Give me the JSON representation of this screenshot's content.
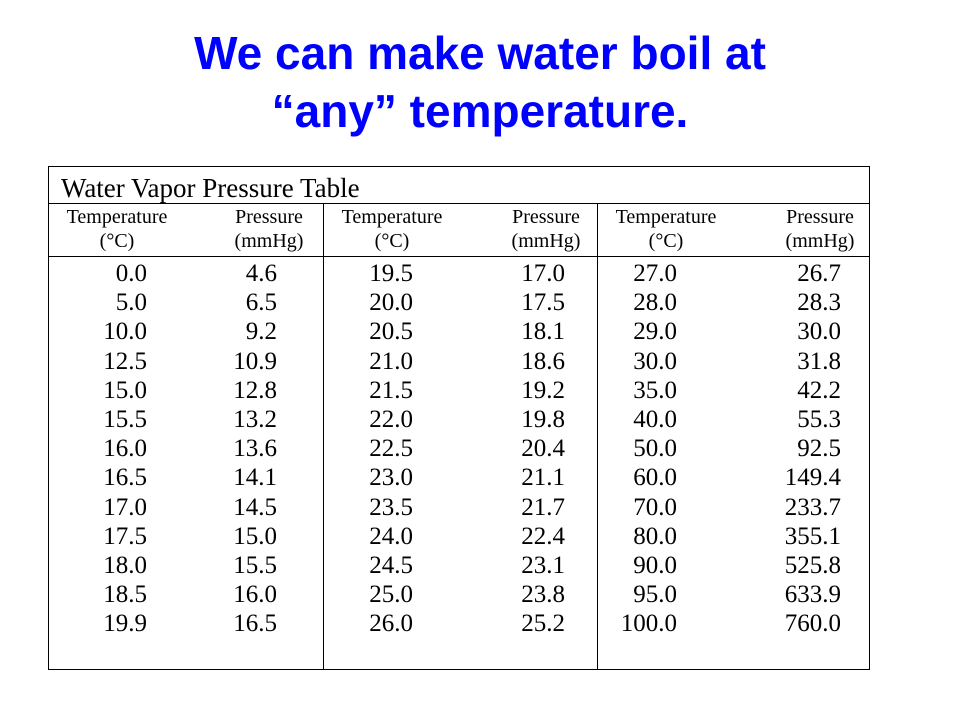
{
  "slide": {
    "title_line1": "We can make water boil at",
    "title_line2": "“any” temperature."
  },
  "table": {
    "title": "Water Vapor Pressure Table",
    "columns": [
      {
        "temp_header": [
          "Temperature",
          "(°C)"
        ],
        "pressure_header": [
          "Pressure",
          "(mmHg)"
        ],
        "rows": [
          [
            "0.0",
            "4.6"
          ],
          [
            "5.0",
            "6.5"
          ],
          [
            "10.0",
            "9.2"
          ],
          [
            "12.5",
            "10.9"
          ],
          [
            "15.0",
            "12.8"
          ],
          [
            "15.5",
            "13.2"
          ],
          [
            "16.0",
            "13.6"
          ],
          [
            "16.5",
            "14.1"
          ],
          [
            "17.0",
            "14.5"
          ],
          [
            "17.5",
            "15.0"
          ],
          [
            "18.0",
            "15.5"
          ],
          [
            "18.5",
            "16.0"
          ],
          [
            "19.9",
            "16.5"
          ]
        ]
      },
      {
        "temp_header": [
          "Temperature",
          "(°C)"
        ],
        "pressure_header": [
          "Pressure",
          "(mmHg)"
        ],
        "rows": [
          [
            "19.5",
            "17.0"
          ],
          [
            "20.0",
            "17.5"
          ],
          [
            "20.5",
            "18.1"
          ],
          [
            "21.0",
            "18.6"
          ],
          [
            "21.5",
            "19.2"
          ],
          [
            "22.0",
            "19.8"
          ],
          [
            "22.5",
            "20.4"
          ],
          [
            "23.0",
            "21.1"
          ],
          [
            "23.5",
            "21.7"
          ],
          [
            "24.0",
            "22.4"
          ],
          [
            "24.5",
            "23.1"
          ],
          [
            "25.0",
            "23.8"
          ],
          [
            "26.0",
            "25.2"
          ]
        ]
      },
      {
        "temp_header": [
          "Temperature",
          "(°C)"
        ],
        "pressure_header": [
          "Pressure",
          "(mmHg)"
        ],
        "rows": [
          [
            "27.0",
            "26.7"
          ],
          [
            "28.0",
            "28.3"
          ],
          [
            "29.0",
            "30.0"
          ],
          [
            "30.0",
            "31.8"
          ],
          [
            "35.0",
            "42.2"
          ],
          [
            "40.0",
            "55.3"
          ],
          [
            "50.0",
            "92.5"
          ],
          [
            "60.0",
            "149.4"
          ],
          [
            "70.0",
            "233.7"
          ],
          [
            "80.0",
            "355.1"
          ],
          [
            "90.0",
            "525.8"
          ],
          [
            "95.0",
            "633.9"
          ],
          [
            "100.0",
            "760.0"
          ]
        ]
      }
    ]
  }
}
